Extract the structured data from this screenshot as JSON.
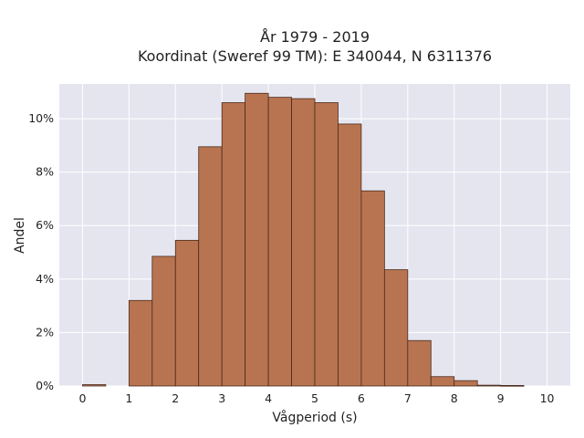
{
  "chart_data": {
    "type": "bar",
    "title": "År 1979 - 2019",
    "subtitle": "Koordinat (Sweref 99 TM): E 340044, N 6311376",
    "xlabel": "Vågperiod (s)",
    "ylabel": "Andel",
    "xlim": [
      -0.5,
      10.5
    ],
    "ylim": [
      0,
      11.3
    ],
    "x_ticks": [
      0,
      1,
      2,
      3,
      4,
      5,
      6,
      7,
      8,
      9,
      10
    ],
    "y_ticks": [
      0,
      2,
      4,
      6,
      8,
      10
    ],
    "y_tick_labels": [
      "0%",
      "2%",
      "4%",
      "6%",
      "8%",
      "10%"
    ],
    "bin_width": 0.5,
    "bin_starts": [
      0,
      0.5,
      1,
      1.5,
      2,
      2.5,
      3,
      3.5,
      4,
      4.5,
      5,
      5.5,
      6,
      6.5,
      7,
      7.5,
      8,
      8.5,
      9,
      9.5
    ],
    "values": [
      0.05,
      0,
      3.2,
      4.85,
      5.45,
      8.95,
      10.6,
      10.95,
      10.8,
      10.75,
      10.6,
      9.8,
      7.3,
      4.35,
      1.7,
      0.35,
      0.2,
      0.03,
      0.02,
      0
    ],
    "grid": true,
    "colors": {
      "bar_fill": "#b87450",
      "bar_edge": "#4a2a1a",
      "plot_bg": "#e5e5f0",
      "grid": "#ffffff"
    }
  }
}
